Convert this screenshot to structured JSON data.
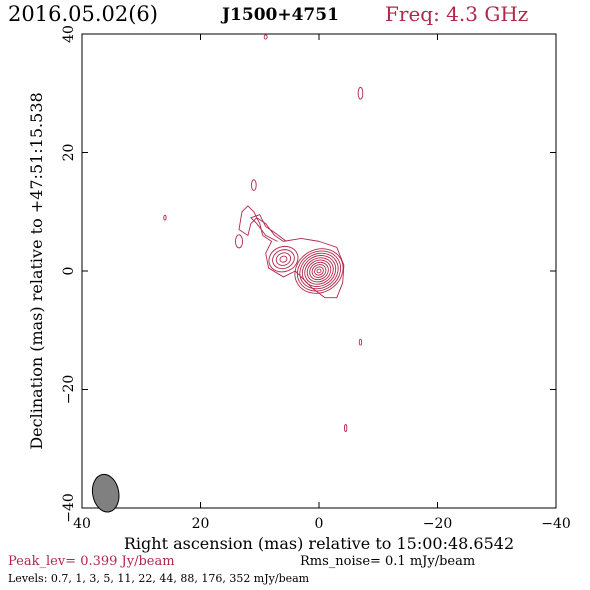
{
  "header": {
    "date": "2016.05.02(6)",
    "source": "J1500+4751",
    "freq": "Freq: 4.3 GHz"
  },
  "chart_data": {
    "type": "contour",
    "xlabel": "Right ascension (mas) relative to 15:00:48.6542",
    "ylabel": "Declination (mas) relative to +47:51:15.538",
    "xlim": [
      40,
      -40
    ],
    "ylim": [
      -40,
      40
    ],
    "xticks": [
      40,
      20,
      0,
      -20,
      -40
    ],
    "yticks": [
      -40,
      -20,
      0,
      20,
      40
    ],
    "xtick_labels": [
      "40",
      "20",
      "0",
      "−20",
      "−40"
    ],
    "ytick_labels": [
      "−40",
      "−20",
      "0",
      "20",
      "40"
    ],
    "contour_color": "#b0284a",
    "beam": {
      "x": 36,
      "y": -37.5,
      "major": 3.2,
      "minor": 2.2,
      "pa_deg": -10,
      "fill": "#808080"
    },
    "components": [
      {
        "x": 0,
        "y": 0,
        "rings": 10,
        "a_max": 4.2,
        "b_max": 3.6,
        "a_min": 0.35,
        "b_min": 0.3,
        "angle": -30
      },
      {
        "x": 6,
        "y": 2,
        "rings": 4,
        "a_max": 2.5,
        "b_max": 2.1,
        "a_min": 0.6,
        "b_min": 0.5,
        "angle": -20
      }
    ],
    "blobs": [
      {
        "x": 9,
        "y": 39.5,
        "a": 0.25,
        "b": 0.35
      },
      {
        "x": -7,
        "y": 30,
        "a": 0.4,
        "b": 1.0
      },
      {
        "x": 11,
        "y": 14.5,
        "a": 0.4,
        "b": 0.9
      },
      {
        "x": 26,
        "y": 9,
        "a": 0.2,
        "b": 0.4
      },
      {
        "x": 13.5,
        "y": 5,
        "a": 0.6,
        "b": 1.1
      },
      {
        "x": -7,
        "y": -12,
        "a": 0.2,
        "b": 0.5
      },
      {
        "x": -4.5,
        "y": -26.5,
        "a": 0.2,
        "b": 0.6
      }
    ],
    "peak_level": "Peak_lev=  0.399 Jy/beam",
    "rms_noise": "Rms_noise=  0.1 mJy/beam",
    "levels": "Levels: 0.7,   1,   3,   5,  11,  22,  44,  88, 176, 352 mJy/beam"
  }
}
